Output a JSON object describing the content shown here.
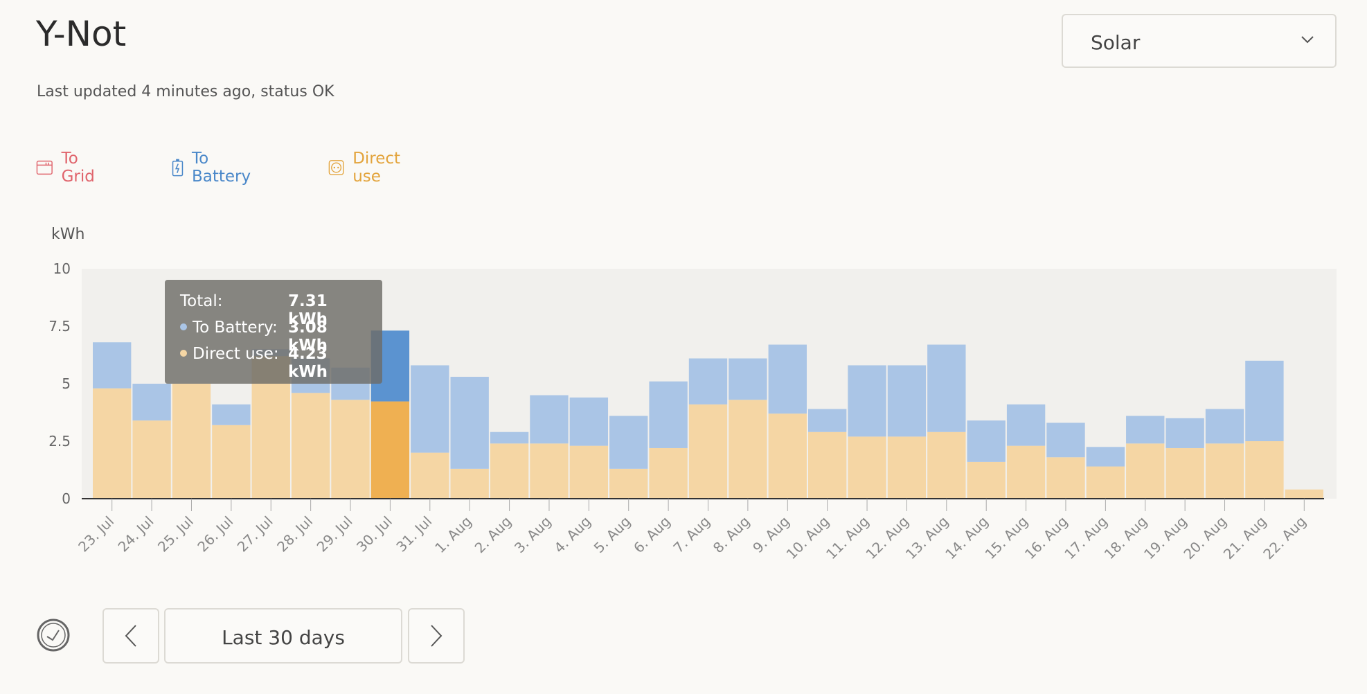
{
  "header": {
    "title": "Y-Not",
    "status": "Last updated 4 minutes ago, status OK"
  },
  "source_select": {
    "selected": "Solar",
    "icon": "chevron-down-icon"
  },
  "legend": {
    "grid": {
      "label": "To Grid",
      "color": "#e0646c",
      "icon": "grid-icon"
    },
    "battery": {
      "label": "To Battery",
      "color": "#4a88c9",
      "icon": "battery-icon"
    },
    "direct": {
      "label": "Direct use",
      "color": "#e3a43c",
      "icon": "socket-icon"
    }
  },
  "chart_data": {
    "type": "bar",
    "stacked": true,
    "ylabel": "kWh",
    "ylim": [
      0,
      10
    ],
    "yticks": [
      "0",
      "2.5",
      "5",
      "7.5",
      "10"
    ],
    "categories": [
      "23. Jul",
      "24. Jul",
      "25. Jul",
      "26. Jul",
      "27. Jul",
      "28. Jul",
      "29. Jul",
      "30. Jul",
      "31. Jul",
      "1. Aug",
      "2. Aug",
      "3. Aug",
      "4. Aug",
      "5. Aug",
      "6. Aug",
      "7. Aug",
      "8. Aug",
      "9. Aug",
      "10. Aug",
      "11. Aug",
      "12. Aug",
      "13. Aug",
      "14. Aug",
      "15. Aug",
      "16. Aug",
      "17. Aug",
      "18. Aug",
      "19. Aug",
      "20. Aug",
      "21. Aug",
      "22. Aug"
    ],
    "series": [
      {
        "name": "Direct use",
        "color": "#f5d6a4",
        "highlight_color": "#efb052",
        "values": [
          4.8,
          3.4,
          5.0,
          3.2,
          6.2,
          4.6,
          4.3,
          4.23,
          2.0,
          1.3,
          2.4,
          2.4,
          2.3,
          1.3,
          2.2,
          4.1,
          4.3,
          3.7,
          2.9,
          2.7,
          2.7,
          2.9,
          1.6,
          2.3,
          1.8,
          1.4,
          2.4,
          2.2,
          2.4,
          2.5,
          0.4
        ]
      },
      {
        "name": "To Battery",
        "color": "#aac5e6",
        "highlight_color": "#5b93d0",
        "values": [
          2.0,
          1.6,
          0.0,
          0.9,
          0.3,
          1.5,
          1.4,
          3.08,
          3.8,
          4.0,
          0.5,
          2.1,
          2.1,
          2.3,
          2.9,
          2.0,
          1.8,
          3.0,
          1.0,
          3.1,
          3.1,
          3.8,
          1.8,
          1.8,
          1.5,
          0.85,
          1.2,
          1.3,
          1.5,
          3.5,
          0.0
        ]
      },
      {
        "name": "To Grid",
        "color": "#e0646c",
        "values": [
          0,
          0,
          0,
          0,
          0,
          0,
          0,
          0,
          0,
          0,
          0,
          0,
          0,
          0,
          0,
          0,
          0,
          0,
          0,
          0,
          0,
          0,
          0,
          0,
          0,
          0,
          0,
          0,
          0,
          0,
          0
        ]
      }
    ],
    "highlight_index": 7
  },
  "tooltip": {
    "total_key": "Total:",
    "total_value": "7.31 kWh",
    "battery_key": "To Battery:",
    "battery_value": "3.08 kWh",
    "direct_key": "Direct use:",
    "direct_value": "4.23 kWh"
  },
  "controls": {
    "clock_icon": "clock-icon",
    "prev_icon": "chevron-left-icon",
    "range_label": "Last 30 days",
    "next_icon": "chevron-right-icon"
  }
}
